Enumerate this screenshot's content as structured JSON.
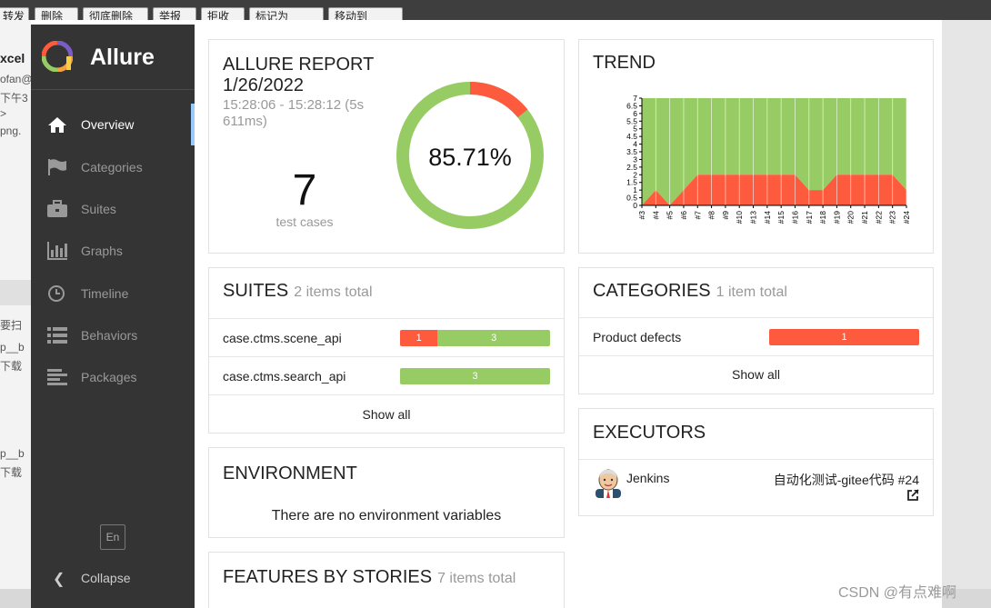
{
  "background_app": {
    "toolbar_buttons": [
      "转发",
      "删除",
      "彻底删除",
      "举报",
      "拒收",
      "标记为",
      "移动到"
    ],
    "left_fragments": [
      "xcel",
      "ofan@",
      "下午3",
      ">",
      "png.",
      "要扫",
      "p__b",
      "下载",
      "p__b",
      "下载"
    ]
  },
  "sidebar": {
    "brand": "Allure",
    "items": [
      {
        "label": "Overview",
        "icon": "home-icon",
        "active": true
      },
      {
        "label": "Categories",
        "icon": "flag-icon",
        "active": false
      },
      {
        "label": "Suites",
        "icon": "briefcase-icon",
        "active": false
      },
      {
        "label": "Graphs",
        "icon": "bar-chart-icon",
        "active": false
      },
      {
        "label": "Timeline",
        "icon": "clock-icon",
        "active": false
      },
      {
        "label": "Behaviors",
        "icon": "list-icon",
        "active": false
      },
      {
        "label": "Packages",
        "icon": "align-left-icon",
        "active": false
      }
    ],
    "language": "En",
    "collapse_label": "Collapse"
  },
  "report": {
    "title": "ALLURE REPORT 1/26/2022",
    "time_range": "15:28:06 - 15:28:12 (5s 611ms)",
    "test_count": "7",
    "test_count_label": "test cases",
    "pass_rate_label": "85.71%",
    "pass_fraction": 0.8571,
    "colors": {
      "passed": "#97cc64",
      "failed": "#fd5a3e"
    }
  },
  "trend": {
    "title": "TREND",
    "chart_data": {
      "type": "area",
      "x": [
        "#3",
        "#4",
        "#5",
        "#6",
        "#7",
        "#8",
        "#9",
        "#10",
        "#13",
        "#14",
        "#15",
        "#16",
        "#17",
        "#18",
        "#19",
        "#20",
        "#21",
        "#22",
        "#23",
        "#24"
      ],
      "series": [
        {
          "name": "failed",
          "color": "#fd5a3e",
          "values": [
            0,
            1,
            0,
            1,
            2,
            2,
            2,
            2,
            2,
            2,
            2,
            2,
            1,
            1,
            2,
            2,
            2,
            2,
            2,
            1
          ]
        },
        {
          "name": "passed",
          "color": "#97cc64",
          "values": [
            7,
            6,
            7,
            6,
            5,
            5,
            5,
            5,
            5,
            5,
            5,
            5,
            6,
            6,
            5,
            5,
            5,
            5,
            5,
            6
          ]
        }
      ],
      "ylim": [
        0,
        7
      ],
      "yticks": [
        "0",
        "0.5",
        "1",
        "1.5",
        "2",
        "2.5",
        "3",
        "3.5",
        "4",
        "4.5",
        "5",
        "5.5",
        "6",
        "6.5",
        "7"
      ],
      "stacked": true
    }
  },
  "suites": {
    "title": "SUITES",
    "subtitle": "2 items total",
    "rows": [
      {
        "name": "case.ctms.scene_api",
        "failed": 1,
        "passed": 3,
        "failed_label": "1",
        "passed_label": "3"
      },
      {
        "name": "case.ctms.search_api",
        "failed": 0,
        "passed": 3,
        "failed_label": "",
        "passed_label": "3"
      }
    ],
    "show_all": "Show all"
  },
  "categories": {
    "title": "CATEGORIES",
    "subtitle": "1 item total",
    "rows": [
      {
        "name": "Product defects",
        "value": 1,
        "value_label": "1"
      }
    ],
    "show_all": "Show all"
  },
  "environment": {
    "title": "ENVIRONMENT",
    "empty_text": "There are no environment variables"
  },
  "executors": {
    "title": "EXECUTORS",
    "name": "Jenkins",
    "build": "自动化测试-gitee代码 #24"
  },
  "features": {
    "title": "FEATURES BY STORIES",
    "subtitle": "7 items total"
  },
  "watermark": "CSDN @有点难啊"
}
